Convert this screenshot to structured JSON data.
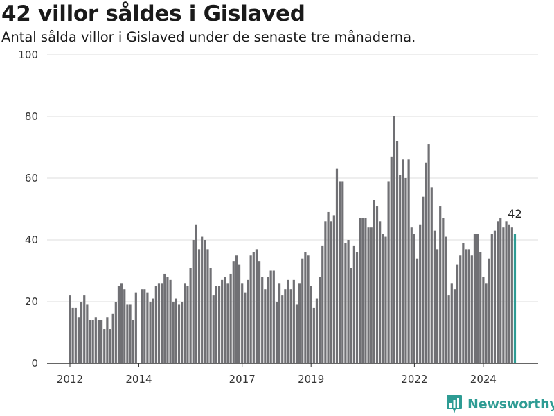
{
  "title": "42 villor såldes i Gislaved",
  "subtitle": "Antal sålda villor i Gislaved under de senaste tre månaderna.",
  "brand": {
    "name": "Newsworthy",
    "icon": "bar-chart-logo-icon",
    "color": "#2e9c94"
  },
  "chart_data": {
    "type": "bar",
    "title": "42 villor såldes i Gislaved",
    "subtitle": "Antal sålda villor i Gislaved under de senaste tre månaderna.",
    "xlabel": "",
    "ylabel": "",
    "ylim": [
      0,
      100
    ],
    "yticks": [
      0,
      20,
      40,
      60,
      80,
      100
    ],
    "xticks": [
      "2012",
      "2014",
      "2017",
      "2019",
      "2022",
      "2024"
    ],
    "grid": true,
    "bar_color": "#707074",
    "highlight_color": "#2e9c94",
    "last_value_label": "42",
    "values": [
      22,
      18,
      18,
      15,
      20,
      22,
      19,
      14,
      14,
      15,
      14,
      14,
      11,
      15,
      11,
      16,
      20,
      25,
      26,
      24,
      19,
      19,
      14,
      23,
      null,
      24,
      24,
      23,
      20,
      21,
      25,
      26,
      26,
      29,
      28,
      27,
      20,
      21,
      19,
      20,
      26,
      25,
      31,
      40,
      45,
      37,
      41,
      40,
      37,
      31,
      22,
      25,
      25,
      27,
      28,
      26,
      29,
      33,
      35,
      32,
      26,
      23,
      27,
      35,
      36,
      37,
      33,
      28,
      24,
      28,
      30,
      30,
      20,
      26,
      22,
      24,
      27,
      24,
      27,
      19,
      26,
      34,
      36,
      35,
      25,
      18,
      21,
      28,
      38,
      46,
      49,
      46,
      48,
      63,
      59,
      59,
      39,
      40,
      31,
      38,
      36,
      47,
      47,
      47,
      44,
      44,
      53,
      51,
      46,
      42,
      41,
      59,
      67,
      80,
      72,
      61,
      66,
      60,
      66,
      44,
      42,
      34,
      45,
      54,
      65,
      71,
      57,
      43,
      37,
      51,
      47,
      41,
      22,
      26,
      24,
      32,
      35,
      39,
      37,
      37,
      35,
      42,
      42,
      36,
      28,
      26,
      34,
      42,
      43,
      46,
      47,
      44,
      46,
      45,
      44,
      42
    ]
  }
}
